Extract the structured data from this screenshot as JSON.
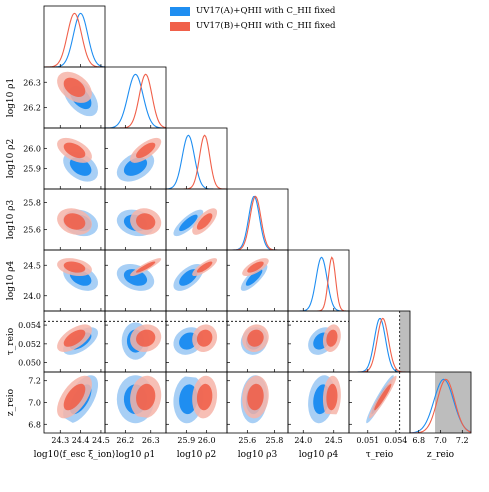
{
  "colors": {
    "series_a": "#1f8ef1",
    "series_a_inner": "#1f8ef1",
    "series_a_outer": "#a8cff5",
    "series_b": "#f0604a",
    "series_b_inner": "#f0604a",
    "series_b_outer": "#f6b4a8",
    "shade": "#bdbdbd"
  },
  "legend": [
    {
      "label": "UV17(A)+QHII with C_HII fixed",
      "color": "#1f8ef1"
    },
    {
      "label": "UV17(B)+QHII with C_HII fixed",
      "color": "#f0604a"
    }
  ],
  "chart_data": {
    "type": "corner",
    "parameters": [
      {
        "key": "xi",
        "xlabel": "log10⟨f_esc ξ_ion⟩",
        "ylabel": "",
        "range": [
          24.22,
          24.52
        ],
        "ticks": [
          "24.3",
          "24.4",
          "24.5"
        ],
        "tickvals": [
          24.3,
          24.4,
          24.5
        ],
        "mean_a": 24.4,
        "sd_a": 0.035,
        "mean_b": 24.37,
        "sd_b": 0.035
      },
      {
        "key": "rho1",
        "xlabel": "log10 ρ1",
        "ylabel": "log10 ρ1",
        "range": [
          26.12,
          26.36
        ],
        "ticks": [
          "26.2",
          "26.3"
        ],
        "tickvals": [
          26.2,
          26.3
        ],
        "mean_a": 26.24,
        "sd_a": 0.03,
        "mean_b": 26.28,
        "sd_b": 0.025
      },
      {
        "key": "rho2",
        "xlabel": "log10 ρ2",
        "ylabel": "log10 ρ2",
        "range": [
          25.8,
          26.1
        ],
        "ticks": [
          "25.9",
          "26.0"
        ],
        "tickvals": [
          25.9,
          26.0
        ],
        "mean_a": 25.91,
        "sd_a": 0.03,
        "mean_b": 25.99,
        "sd_b": 0.025
      },
      {
        "key": "rho3",
        "xlabel": "log10 ρ3",
        "ylabel": "log10 ρ3",
        "range": [
          25.45,
          25.9
        ],
        "ticks": [
          "25.6",
          "25.8"
        ],
        "tickvals": [
          25.6,
          25.8
        ],
        "mean_a": 25.65,
        "sd_a": 0.04,
        "mean_b": 25.66,
        "sd_b": 0.04
      },
      {
        "key": "rho4",
        "xlabel": "log10 ρ4",
        "ylabel": "log10 ρ4",
        "range": [
          23.75,
          24.75
        ],
        "ticks": [
          "24.0",
          "24.5"
        ],
        "tickvals": [
          24.0,
          24.5
        ],
        "mean_a": 24.3,
        "sd_a": 0.09,
        "mean_b": 24.47,
        "sd_b": 0.06
      },
      {
        "key": "tau",
        "xlabel": "τ_reio",
        "ylabel": "τ_reio",
        "range": [
          0.049,
          0.0555
        ],
        "ticks": [
          "0.051",
          "0.054"
        ],
        "tickvals": [
          0.051,
          0.054
        ],
        "mean_a": 0.0523,
        "sd_a": 0.0006,
        "mean_b": 0.0526,
        "sd_b": 0.0006
      },
      {
        "key": "z",
        "xlabel": "z_reio",
        "ylabel": "z_reio",
        "range": [
          6.72,
          7.28
        ],
        "ticks": [
          "6.8",
          "7.0",
          "7.2"
        ],
        "tickvals": [
          6.8,
          7.0,
          7.2
        ],
        "mean_a": 7.03,
        "sd_a": 0.09,
        "mean_b": 7.05,
        "sd_b": 0.08
      }
    ],
    "ytick_labels": {
      "rho1": [
        "26.2",
        "26.3"
      ],
      "rho2": [
        "25.9",
        "26.0"
      ],
      "rho3": [
        "25.6",
        "25.8"
      ],
      "rho4": [
        "24.0",
        "24.5"
      ],
      "tau": [
        "0.050",
        "0.052",
        "0.054"
      ],
      "z": [
        "6.8",
        "7.0",
        "7.2"
      ]
    },
    "ytick_values": {
      "rho1": [
        26.2,
        26.3
      ],
      "rho2": [
        25.9,
        26.0
      ],
      "rho3": [
        25.6,
        25.8
      ],
      "rho4": [
        24.0,
        24.5
      ],
      "tau": [
        0.05,
        0.052,
        0.054
      ],
      "z": [
        6.8,
        7.0,
        7.2
      ]
    },
    "correlations": {
      "rho1|xi": {
        "a": -0.5,
        "b": -0.4
      },
      "rho2|xi": {
        "a": -0.4,
        "b": -0.5
      },
      "rho2|rho1": {
        "a": 0.4,
        "b": 0.7
      },
      "rho3|xi": {
        "a": -0.2,
        "b": -0.2
      },
      "rho3|rho1": {
        "a": -0.2,
        "b": -0.1
      },
      "rho3|rho2": {
        "a": 0.8,
        "b": 0.7
      },
      "rho4|xi": {
        "a": -0.4,
        "b": -0.3
      },
      "rho4|rho1": {
        "a": -0.3,
        "b": 0.9
      },
      "rho4|rho2": {
        "a": 0.6,
        "b": 0.8
      },
      "rho4|rho3": {
        "a": 0.8,
        "b": 0.7
      },
      "tau|xi": {
        "a": 0.6,
        "b": 0.6
      },
      "tau|rho1": {
        "a": 0.0,
        "b": 0.1
      },
      "tau|rho2": {
        "a": 0.2,
        "b": 0.1
      },
      "tau|rho3": {
        "a": 0.1,
        "b": 0.1
      },
      "tau|rho4": {
        "a": 0.3,
        "b": 0.2
      },
      "z|xi": {
        "a": 0.6,
        "b": 0.6
      },
      "z|rho1": {
        "a": 0.0,
        "b": 0.1
      },
      "z|rho2": {
        "a": 0.1,
        "b": 0.1
      },
      "z|rho3": {
        "a": 0.1,
        "b": 0.1
      },
      "z|rho4": {
        "a": 0.2,
        "b": 0.1
      },
      "z|tau": {
        "a": 0.95,
        "b": 0.95
      }
    },
    "tau_upper_limit": 0.0544,
    "tau_shade_from": 0.0544,
    "z_shade_from": 6.95
  }
}
